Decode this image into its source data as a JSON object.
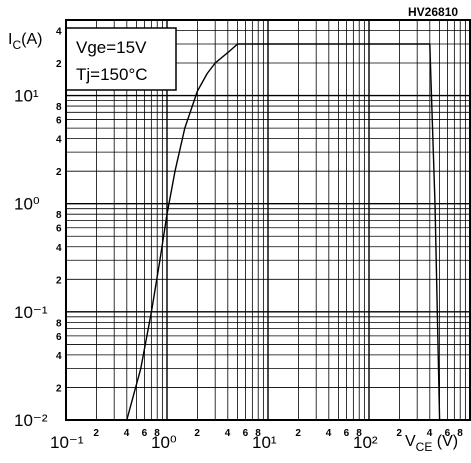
{
  "figure_code": "HV26810",
  "chart_data": {
    "type": "line",
    "xlabel": "V_CE (V)",
    "ylabel": "I_C(A)",
    "xscale": "log",
    "yscale": "log",
    "xlim": [
      0.1,
      1000
    ],
    "ylim": [
      0.01,
      50
    ],
    "x_tick_labels": [
      "10⁻¹",
      "10⁰",
      "10¹",
      "10²"
    ],
    "y_tick_labels": [
      "10¹",
      "10⁰",
      "10⁻¹",
      "10⁻²"
    ],
    "x_minor_labels": [
      "2",
      "4",
      "6",
      "8"
    ],
    "y_minor_labels": [
      "2",
      "4",
      "6",
      "8"
    ],
    "annotations": [
      "Vge=15V",
      "Tj=150°C"
    ],
    "grid": true,
    "series": [
      {
        "x": [
          0.4,
          0.55,
          0.7,
          0.85,
          1.0,
          1.2,
          1.5,
          2.0,
          2.5,
          3.0,
          4.0,
          5.0,
          100,
          400,
          450,
          500
        ],
        "y": [
          0.01,
          0.03,
          0.1,
          0.3,
          0.8,
          2.0,
          5.0,
          11,
          16,
          20,
          25,
          30,
          30,
          30,
          1.0,
          0.01
        ]
      }
    ]
  }
}
